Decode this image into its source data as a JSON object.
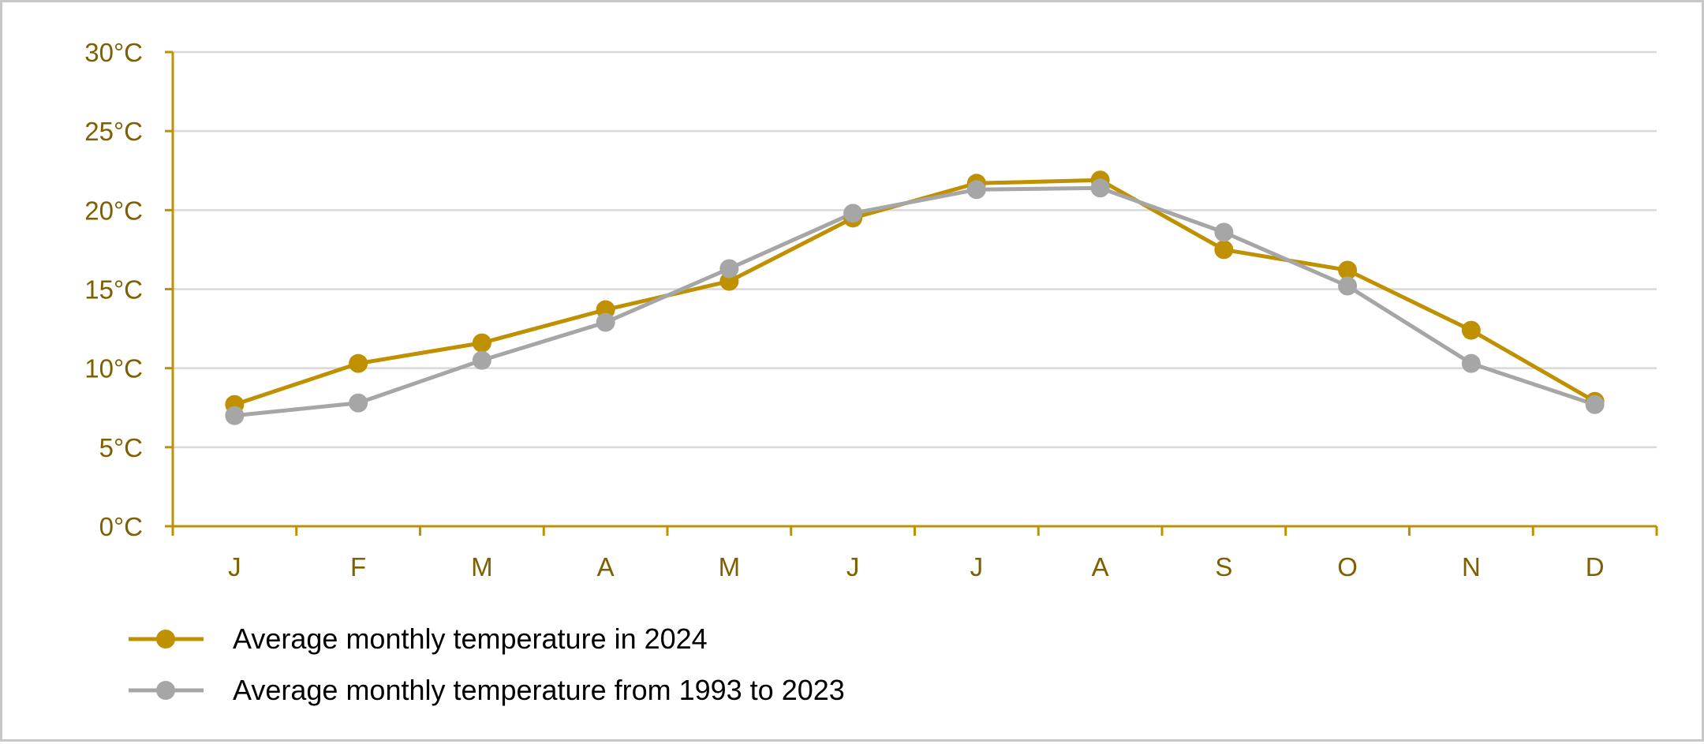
{
  "chart_data": {
    "type": "line",
    "categories": [
      "J",
      "F",
      "M",
      "A",
      "M",
      "J",
      "J",
      "A",
      "S",
      "O",
      "N",
      "D"
    ],
    "ylim": [
      0,
      30
    ],
    "yticks": [
      "0°C",
      "5°C",
      "10°C",
      "15°C",
      "20°C",
      "25°C",
      "30°C"
    ],
    "ytick_values": [
      0,
      5,
      10,
      15,
      20,
      25,
      30
    ],
    "grid": true,
    "legend_position": "bottom-left",
    "series": [
      {
        "name": "Average monthly temperature in 2024",
        "color": "#bf9000",
        "values": [
          7.7,
          10.3,
          11.6,
          13.7,
          15.5,
          19.5,
          21.7,
          21.9,
          17.5,
          16.2,
          12.4,
          7.9
        ]
      },
      {
        "name": "Average monthly temperature from 1993 to 2023",
        "color": "#a6a6a6",
        "values": [
          7.0,
          7.8,
          10.5,
          12.9,
          16.3,
          19.8,
          21.3,
          21.4,
          18.6,
          15.2,
          10.3,
          7.7
        ]
      }
    ]
  },
  "colors": {
    "axis": "#bf9000",
    "tick_text": "#7f6000",
    "gridline": "#d9d9d9"
  }
}
